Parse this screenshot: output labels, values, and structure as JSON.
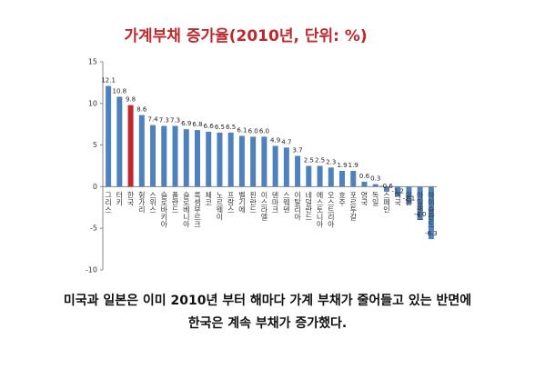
{
  "chart_data": {
    "type": "bar",
    "title": "가계부채 증가율(2010년, 단위: %)",
    "categories": [
      "그리스",
      "터키",
      "한국",
      "헝가리",
      "스위스",
      "슬로바키아",
      "폴란드",
      "슬로베니아",
      "룩셈부르크",
      "체코",
      "노르웨이",
      "프랑스",
      "벨기에",
      "핀란드",
      "이스라엘",
      "덴마크",
      "스웨덴",
      "이탈리아",
      "네덜란드",
      "에스토니아",
      "오스트리아",
      "호주",
      "포르투갈",
      "영국",
      "독일",
      "스페인",
      "미국",
      "일본",
      "아일랜드",
      "아이슬란드"
    ],
    "values": [
      12.1,
      10.8,
      9.8,
      8.6,
      7.4,
      7.3,
      7.3,
      6.9,
      6.8,
      6.6,
      6.5,
      6.5,
      6.1,
      6.0,
      6.0,
      4.9,
      4.7,
      3.7,
      2.5,
      2.5,
      2.3,
      1.9,
      1.9,
      0.6,
      0.3,
      -0.6,
      -1.2,
      -2.1,
      -4.0,
      -6.3
    ],
    "value_labels": [
      "12.1",
      "10.8",
      "9.8",
      "8.6",
      "7.4",
      "7.3",
      "7.3",
      "6.9",
      "6.8",
      "6.6",
      "6.5",
      "6.5",
      "6.1",
      "6.0",
      "6.0",
      "4.9",
      "4.7",
      "3.7",
      "2.5",
      "2.5",
      "2.3",
      "1.9",
      "1.9",
      "0.6",
      "0.3",
      "-0.6",
      "-1.2",
      "-2.1",
      "-4.0",
      "-6.3"
    ],
    "color": "#4f81bd",
    "highlight": {
      "index": 2,
      "color": "#c0282d"
    },
    "ylim": [
      -10,
      15
    ],
    "yticks": [
      -10,
      -5,
      0,
      5,
      10,
      15
    ],
    "caption": [
      "미국과 일본은 이미 2010년 부터 해마다 가계 부채가 줄어들고 있는 반면에",
      "한국은 계속 부채가 증가했다."
    ]
  }
}
